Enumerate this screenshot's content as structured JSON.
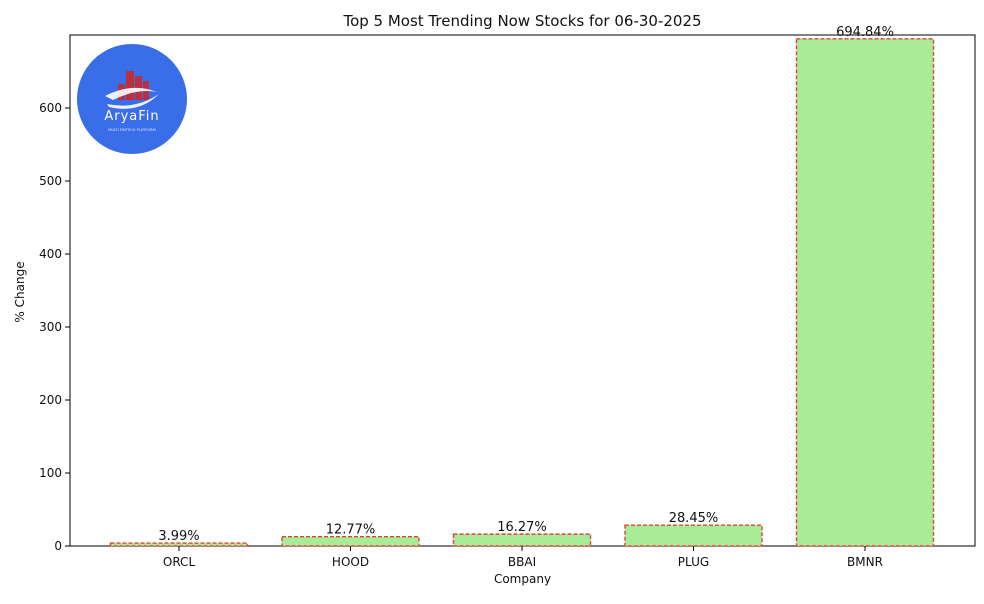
{
  "logo": {
    "name": "AryaFin",
    "tagline": "MULTI FINTECH PLATFORM",
    "circle_color": "#3a6ee8",
    "accent_color": "#b8313f"
  },
  "chart_data": {
    "type": "bar",
    "title": "Top 5 Most Trending Now Stocks for 06-30-2025",
    "xlabel": "Company",
    "ylabel": "% Change",
    "categories": [
      "ORCL",
      "HOOD",
      "BBAI",
      "PLUG",
      "BMNR"
    ],
    "values": [
      3.99,
      12.77,
      16.27,
      28.45,
      694.84
    ],
    "value_labels": [
      "3.99%",
      "12.77%",
      "16.27%",
      "28.45%",
      "694.84%"
    ],
    "ylim": [
      0,
      700
    ],
    "yticks": [
      0,
      100,
      200,
      300,
      400,
      500,
      600
    ],
    "grid": false,
    "bar_color": "#a8ec98",
    "bar_edge_color": "#d9473a"
  }
}
